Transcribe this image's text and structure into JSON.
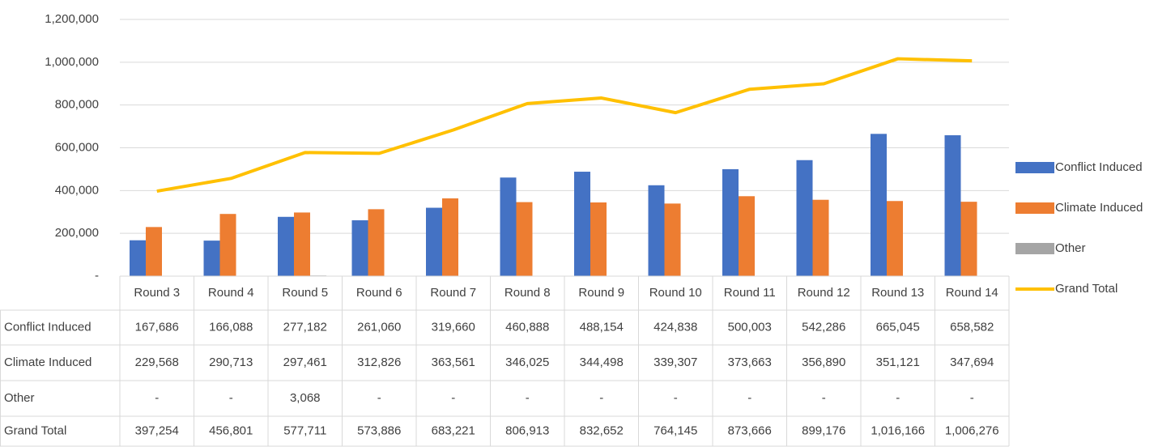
{
  "chart_data": {
    "type": "bar",
    "categories": [
      "Round 3",
      "Round 4",
      "Round 5",
      "Round 6",
      "Round 7",
      "Round 8",
      "Round 9",
      "Round 10",
      "Round 11",
      "Round 12",
      "Round 13",
      "Round 14"
    ],
    "series": [
      {
        "name": "Conflict Induced",
        "color": "#4472c4",
        "values": [
          167686,
          166088,
          277182,
          261060,
          319660,
          460888,
          488154,
          424838,
          500003,
          542286,
          665045,
          658582
        ],
        "value_labels": [
          "167,686",
          "166,088",
          "277,182",
          "261,060",
          "319,660",
          "460,888",
          "488,154",
          "424,838",
          "500,003",
          "542,286",
          "665,045",
          "658,582"
        ]
      },
      {
        "name": "Climate Induced",
        "color": "#ed7d31",
        "values": [
          229568,
          290713,
          297461,
          312826,
          363561,
          346025,
          344498,
          339307,
          373663,
          356890,
          351121,
          347694
        ],
        "value_labels": [
          "229,568",
          "290,713",
          "297,461",
          "312,826",
          "363,561",
          "346,025",
          "344,498",
          "339,307",
          "373,663",
          "356,890",
          "351,121",
          "347,694"
        ]
      },
      {
        "name": "Other",
        "color": "#a5a5a5",
        "values": [
          0,
          0,
          3068,
          0,
          0,
          0,
          0,
          0,
          0,
          0,
          0,
          0
        ],
        "value_labels": [
          "-",
          "-",
          "3,068",
          "-",
          "-",
          "-",
          "-",
          "-",
          "-",
          "-",
          "-",
          "-"
        ]
      },
      {
        "name": "Grand Total",
        "color": "#ffc000",
        "type": "line",
        "values": [
          397254,
          456801,
          577711,
          573886,
          683221,
          806913,
          832652,
          764145,
          873666,
          899176,
          1016166,
          1006276
        ],
        "value_labels": [
          "397,254",
          "456,801",
          "577,711",
          "573,886",
          "683,221",
          "806,913",
          "832,652",
          "764,145",
          "873,666",
          "899,176",
          "1,016,166",
          "1,006,276"
        ]
      }
    ],
    "ylim": [
      0,
      1200000
    ],
    "yticks": [
      {
        "value": 0,
        "label": "-"
      },
      {
        "value": 200000,
        "label": "200,000"
      },
      {
        "value": 400000,
        "label": "400,000"
      },
      {
        "value": 600000,
        "label": "600,000"
      },
      {
        "value": 800000,
        "label": "800,000"
      },
      {
        "value": 1000000,
        "label": "1,000,000"
      },
      {
        "value": 1200000,
        "label": "1,200,000"
      }
    ],
    "grid": true,
    "legend": "right",
    "data_table": true
  }
}
